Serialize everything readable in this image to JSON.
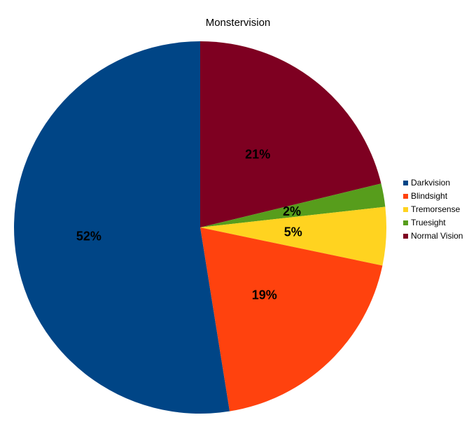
{
  "chart_data": {
    "type": "pie",
    "title": "Monstervision",
    "legend_position": "right",
    "slices": [
      {
        "name": "Darkvision",
        "value": 52,
        "label": "52%",
        "color": "#004586"
      },
      {
        "name": "Blindsight",
        "value": 19,
        "label": "19%",
        "color": "#ff420e"
      },
      {
        "name": "Tremorsense",
        "value": 5,
        "label": "5%",
        "color": "#ffd320"
      },
      {
        "name": "Truesight",
        "value": 2,
        "label": "2%",
        "color": "#579d1c"
      },
      {
        "name": "Normal Vision",
        "value": 21,
        "label": "21%",
        "color": "#7e0021"
      }
    ],
    "draw_order": [
      "Normal Vision",
      "Truesight",
      "Tremorsense",
      "Blindsight",
      "Darkvision"
    ]
  }
}
